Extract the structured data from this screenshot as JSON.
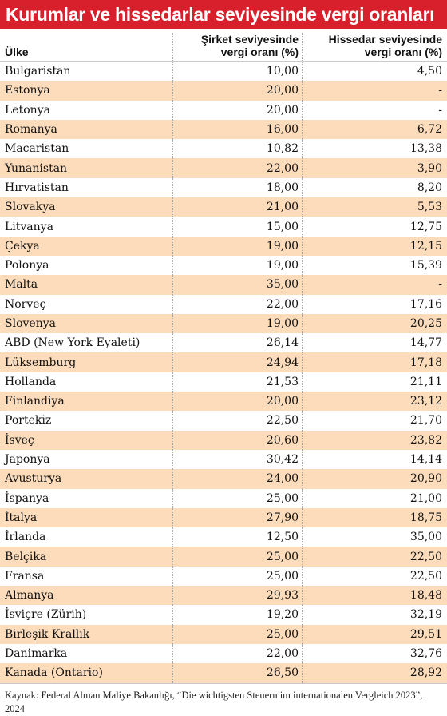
{
  "title": "Kurumlar ve hissedarlar seviyesinde vergi oranları",
  "header": {
    "country": "Ülke",
    "col1_line1": "Şirket seviyesinde",
    "col1_line2": "vergi oranı (%)",
    "col2_line1": "Hissedar seviyesinde",
    "col2_line2": "vergi oranı (%)"
  },
  "rows": [
    {
      "country": "Bulgaristan",
      "company": "10,00",
      "shareholder": "4,50"
    },
    {
      "country": "Estonya",
      "company": "20,00",
      "shareholder": "-"
    },
    {
      "country": "Letonya",
      "company": "20,00",
      "shareholder": "-"
    },
    {
      "country": "Romanya",
      "company": "16,00",
      "shareholder": "6,72"
    },
    {
      "country": "Macaristan",
      "company": "10,82",
      "shareholder": "13,38"
    },
    {
      "country": "Yunanistan",
      "company": "22,00",
      "shareholder": "3,90"
    },
    {
      "country": "Hırvatistan",
      "company": "18,00",
      "shareholder": "8,20"
    },
    {
      "country": "Slovakya",
      "company": "21,00",
      "shareholder": "5,53"
    },
    {
      "country": "Litvanya",
      "company": "15,00",
      "shareholder": "12,75"
    },
    {
      "country": "Çekya",
      "company": "19,00",
      "shareholder": "12,15"
    },
    {
      "country": "Polonya",
      "company": "19,00",
      "shareholder": "15,39"
    },
    {
      "country": "Malta",
      "company": "35,00",
      "shareholder": "-"
    },
    {
      "country": "Norveç",
      "company": "22,00",
      "shareholder": "17,16"
    },
    {
      "country": "Slovenya",
      "company": "19,00",
      "shareholder": "20,25"
    },
    {
      "country": "ABD (New York Eyaleti)",
      "company": "26,14",
      "shareholder": "14,77"
    },
    {
      "country": "Lüksemburg",
      "company": "24,94",
      "shareholder": "17,18"
    },
    {
      "country": "Hollanda",
      "company": "21,53",
      "shareholder": "21,11"
    },
    {
      "country": "Finlandiya",
      "company": "20,00",
      "shareholder": "23,12"
    },
    {
      "country": "Portekiz",
      "company": "22,50",
      "shareholder": "21,70"
    },
    {
      "country": "İsveç",
      "company": "20,60",
      "shareholder": "23,82"
    },
    {
      "country": "Japonya",
      "company": "30,42",
      "shareholder": "14,14"
    },
    {
      "country": "Avusturya",
      "company": "24,00",
      "shareholder": "20,90"
    },
    {
      "country": "İspanya",
      "company": "25,00",
      "shareholder": "21,00"
    },
    {
      "country": "İtalya",
      "company": "27,90",
      "shareholder": "18,75"
    },
    {
      "country": "İrlanda",
      "company": "12,50",
      "shareholder": "35,00"
    },
    {
      "country": "Belçika",
      "company": "25,00",
      "shareholder": "22,50"
    },
    {
      "country": "Fransa",
      "company": "25,00",
      "shareholder": "22,50"
    },
    {
      "country": "Almanya",
      "company": "29,93",
      "shareholder": "18,48"
    },
    {
      "country": "İsviçre (Zürih)",
      "company": "19,20",
      "shareholder": "32,19"
    },
    {
      "country": "Birleşik Krallık",
      "company": "25,00",
      "shareholder": "29,51"
    },
    {
      "country": "Danimarka",
      "company": "22,00",
      "shareholder": "32,76"
    },
    {
      "country": "Kanada (Ontario)",
      "company": "26,50",
      "shareholder": "28,92"
    }
  ],
  "source": "Kaynak: Federal Alman Maliye Bakanlığı, “Die wichtigsten Steuern im internationalen Vergleich 2023”, 2024",
  "colors": {
    "title_bg": "#d8202c",
    "row_highlight": "#fcdcba"
  }
}
